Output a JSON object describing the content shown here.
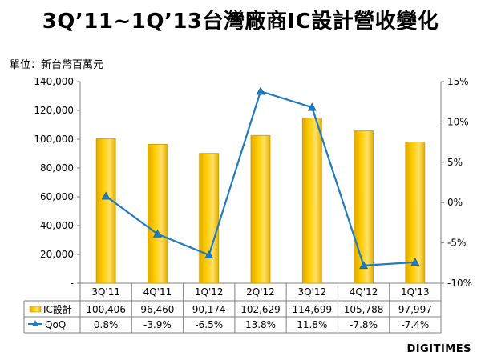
{
  "title": "3Q’11~1Q’13台灣廠商IC設計營收變化",
  "unit_label": "單位：新台幣百萬元",
  "brand": "DIGITIMES",
  "colors": {
    "bar": "#FFCC00",
    "bar_edge": "#C89B00",
    "line": "#1F7BC0",
    "text": "#000000"
  },
  "chart_data": {
    "type": "bar",
    "categories": [
      "3Q'11",
      "4Q'11",
      "1Q'12",
      "2Q'12",
      "3Q'12",
      "4Q'12",
      "1Q'13"
    ],
    "series": [
      {
        "name": "IC設計",
        "type": "bar",
        "axis": "left",
        "values": [
          100406,
          96460,
          90174,
          102629,
          114699,
          105788,
          97997
        ],
        "labels": [
          "100,406",
          "96,460",
          "90,174",
          "102,629",
          "114,699",
          "105,788",
          "97,997"
        ]
      },
      {
        "name": "QoQ",
        "type": "line",
        "axis": "right",
        "values": [
          0.8,
          -3.9,
          -6.5,
          13.8,
          11.8,
          -7.8,
          -7.4
        ],
        "labels": [
          "0.8%",
          "-3.9%",
          "-6.5%",
          "13.8%",
          "11.8%",
          "-7.8%",
          "-7.4%"
        ]
      }
    ],
    "y_left": {
      "min": 0,
      "max": 140000,
      "ticks": [
        0,
        20000,
        40000,
        60000,
        80000,
        100000,
        120000,
        140000
      ],
      "tick_labels": [
        "-",
        "20,000",
        "40,000",
        "60,000",
        "80,000",
        "100,000",
        "120,000",
        "140,000"
      ]
    },
    "y_right": {
      "min": -10,
      "max": 15,
      "ticks": [
        -10,
        -5,
        0,
        5,
        10,
        15
      ],
      "tick_labels": [
        "-10%",
        "-5%",
        "0%",
        "5%",
        "10%",
        "15%"
      ]
    },
    "legend": "data-table",
    "grid": false
  }
}
